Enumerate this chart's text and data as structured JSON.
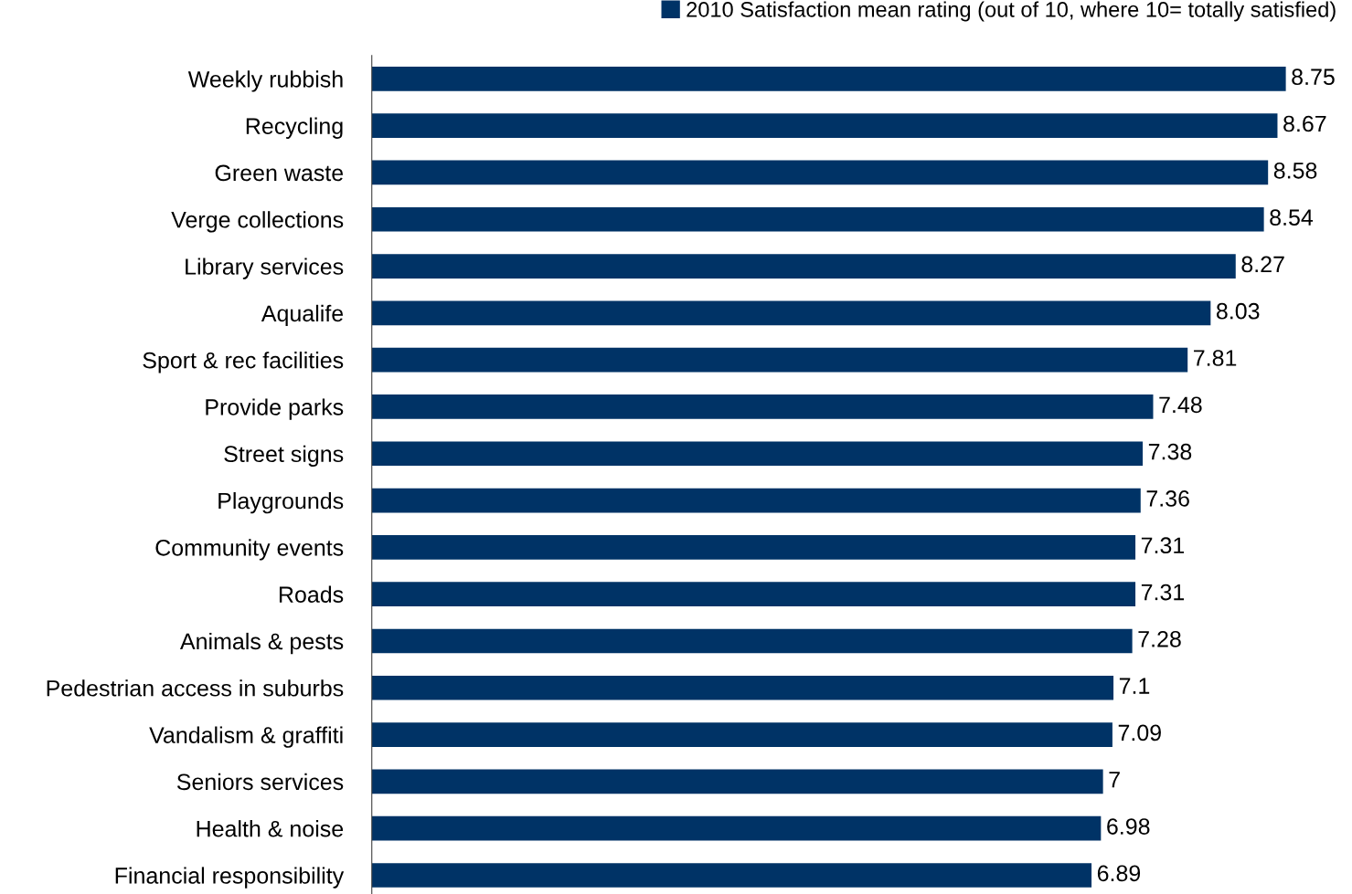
{
  "chart_data": {
    "type": "bar",
    "orientation": "horizontal",
    "categories": [
      "Weekly rubbish",
      "Recycling",
      "Green waste",
      "Verge collections",
      "Library services",
      "Aqualife",
      "Sport & rec facilities",
      "Provide parks",
      "Street signs",
      "Playgrounds",
      "Community events",
      "Roads",
      "Animals & pests",
      "Pedestrian access in suburbs",
      "Vandalism & graffiti",
      "Seniors services",
      "Health & noise",
      "Financial responsibility"
    ],
    "series": [
      {
        "name": "2010 Satisfaction mean rating (out of 10, where 10= totally satisfied)",
        "color": "#003366",
        "values": [
          8.75,
          8.67,
          8.58,
          8.54,
          8.27,
          8.03,
          7.81,
          7.48,
          7.38,
          7.36,
          7.31,
          7.31,
          7.28,
          7.1,
          7.09,
          7,
          6.98,
          6.89
        ]
      }
    ],
    "tick_labels": "y",
    "data_labels": true,
    "legend": "top",
    "grid": false
  }
}
